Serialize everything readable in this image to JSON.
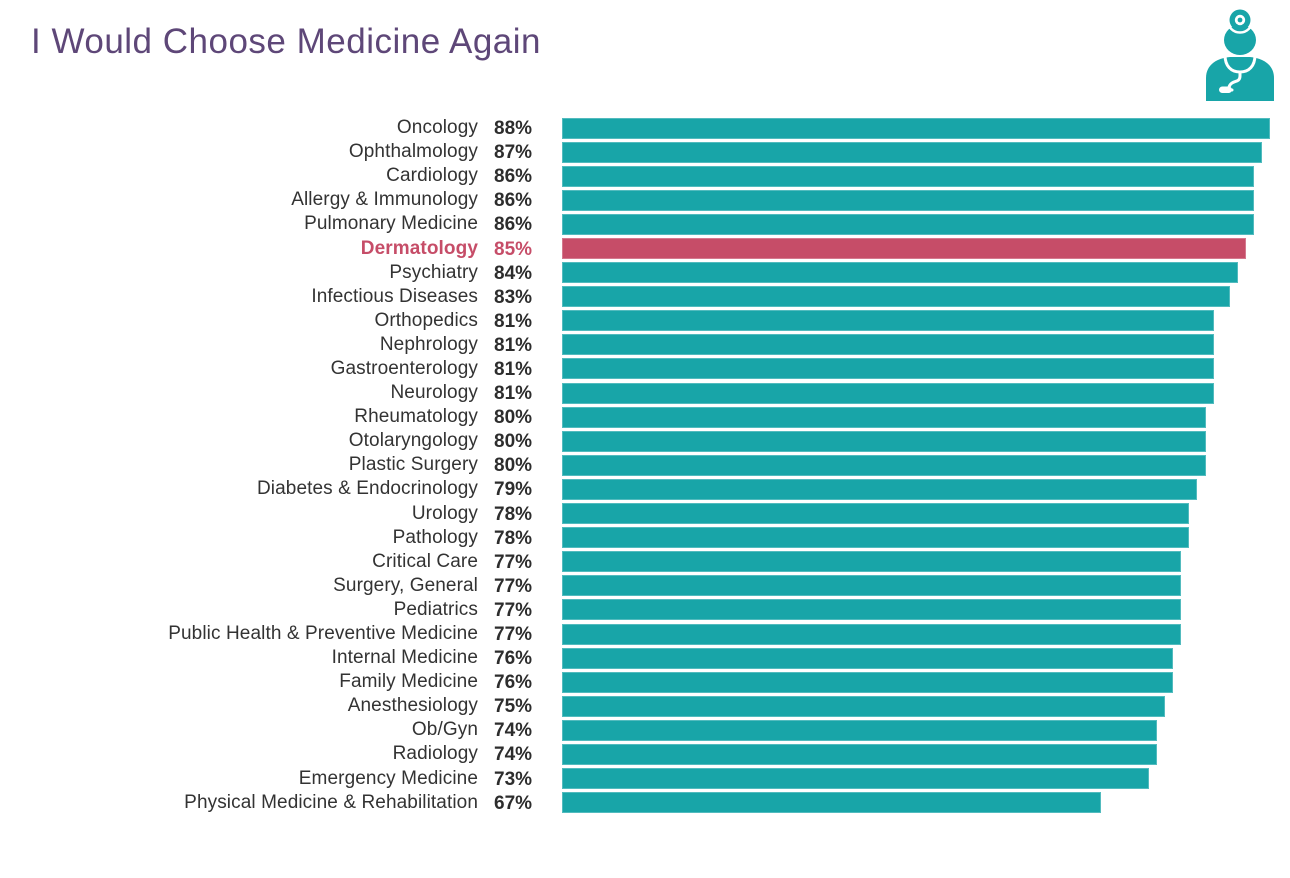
{
  "title": "I Would Choose Medicine Again",
  "colors": {
    "bar": "#18A5A8",
    "highlight": "#C64D68",
    "title": "#5E4778",
    "label": "#333333",
    "value": "#2D2D2D"
  },
  "icon": {
    "name": "doctor-icon"
  },
  "chart_data": {
    "type": "bar",
    "orientation": "horizontal",
    "title": "I Would Choose Medicine Again",
    "value_suffix": "%",
    "xlim": [
      0,
      90.5
    ],
    "grid": false,
    "legend": false,
    "highlight_category": "Dermatology",
    "highlight_color": "#C64D68",
    "bar_color": "#18A5A8",
    "categories": [
      "Oncology",
      "Ophthalmology",
      "Cardiology",
      "Allergy & Immunology",
      "Pulmonary Medicine",
      "Dermatology",
      "Psychiatry",
      "Infectious Diseases",
      "Orthopedics",
      "Nephrology",
      "Gastroenterology",
      "Neurology",
      "Rheumatology",
      "Otolaryngology",
      "Plastic Surgery",
      "Diabetes & Endocrinology",
      "Urology",
      "Pathology",
      "Critical Care",
      "Surgery, General",
      "Pediatrics",
      "Public Health & Preventive Medicine",
      "Internal Medicine",
      "Family Medicine",
      "Anesthesiology",
      "Ob/Gyn",
      "Radiology",
      "Emergency Medicine",
      "Physical Medicine & Rehabilitation"
    ],
    "values": [
      88,
      87,
      86,
      86,
      86,
      85,
      84,
      83,
      81,
      81,
      81,
      81,
      80,
      80,
      80,
      79,
      78,
      78,
      77,
      77,
      77,
      77,
      76,
      76,
      75,
      74,
      74,
      73,
      67
    ]
  }
}
